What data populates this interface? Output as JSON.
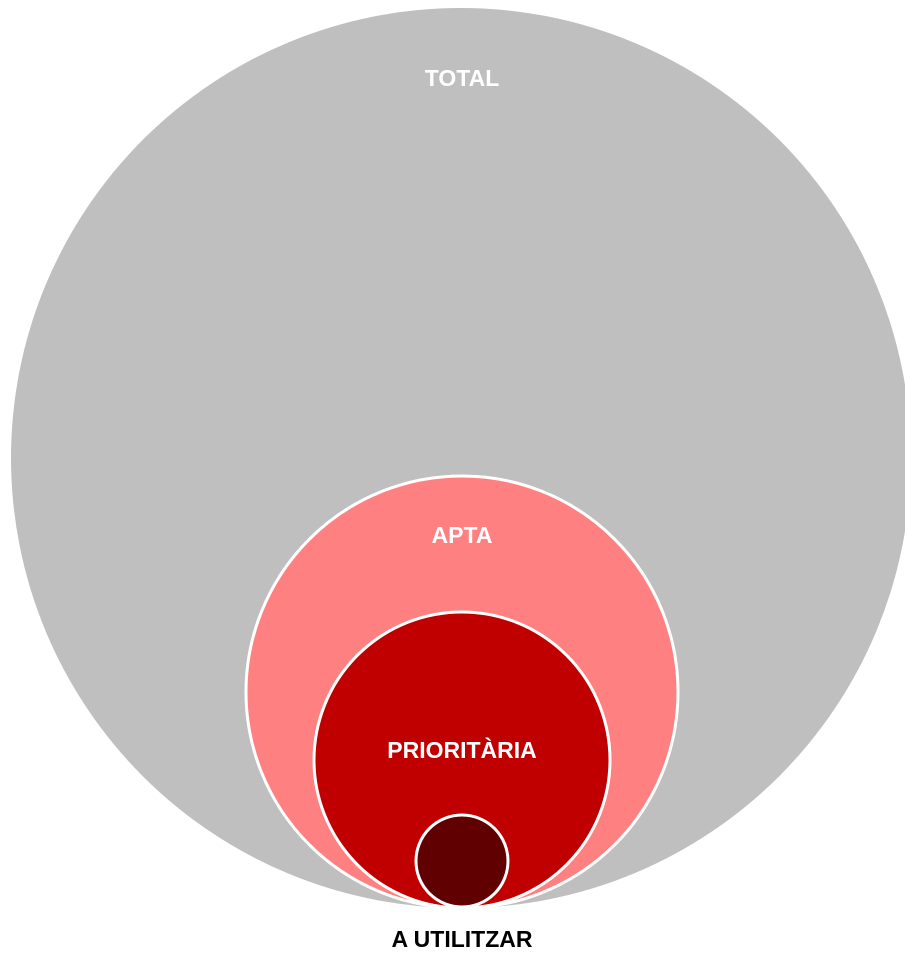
{
  "nodes": [
    {
      "label": "TOTAL"
    },
    {
      "label": "APTA"
    },
    {
      "label": "PRIORITÀRIA"
    },
    {
      "label": "A UTILITZAR"
    }
  ]
}
